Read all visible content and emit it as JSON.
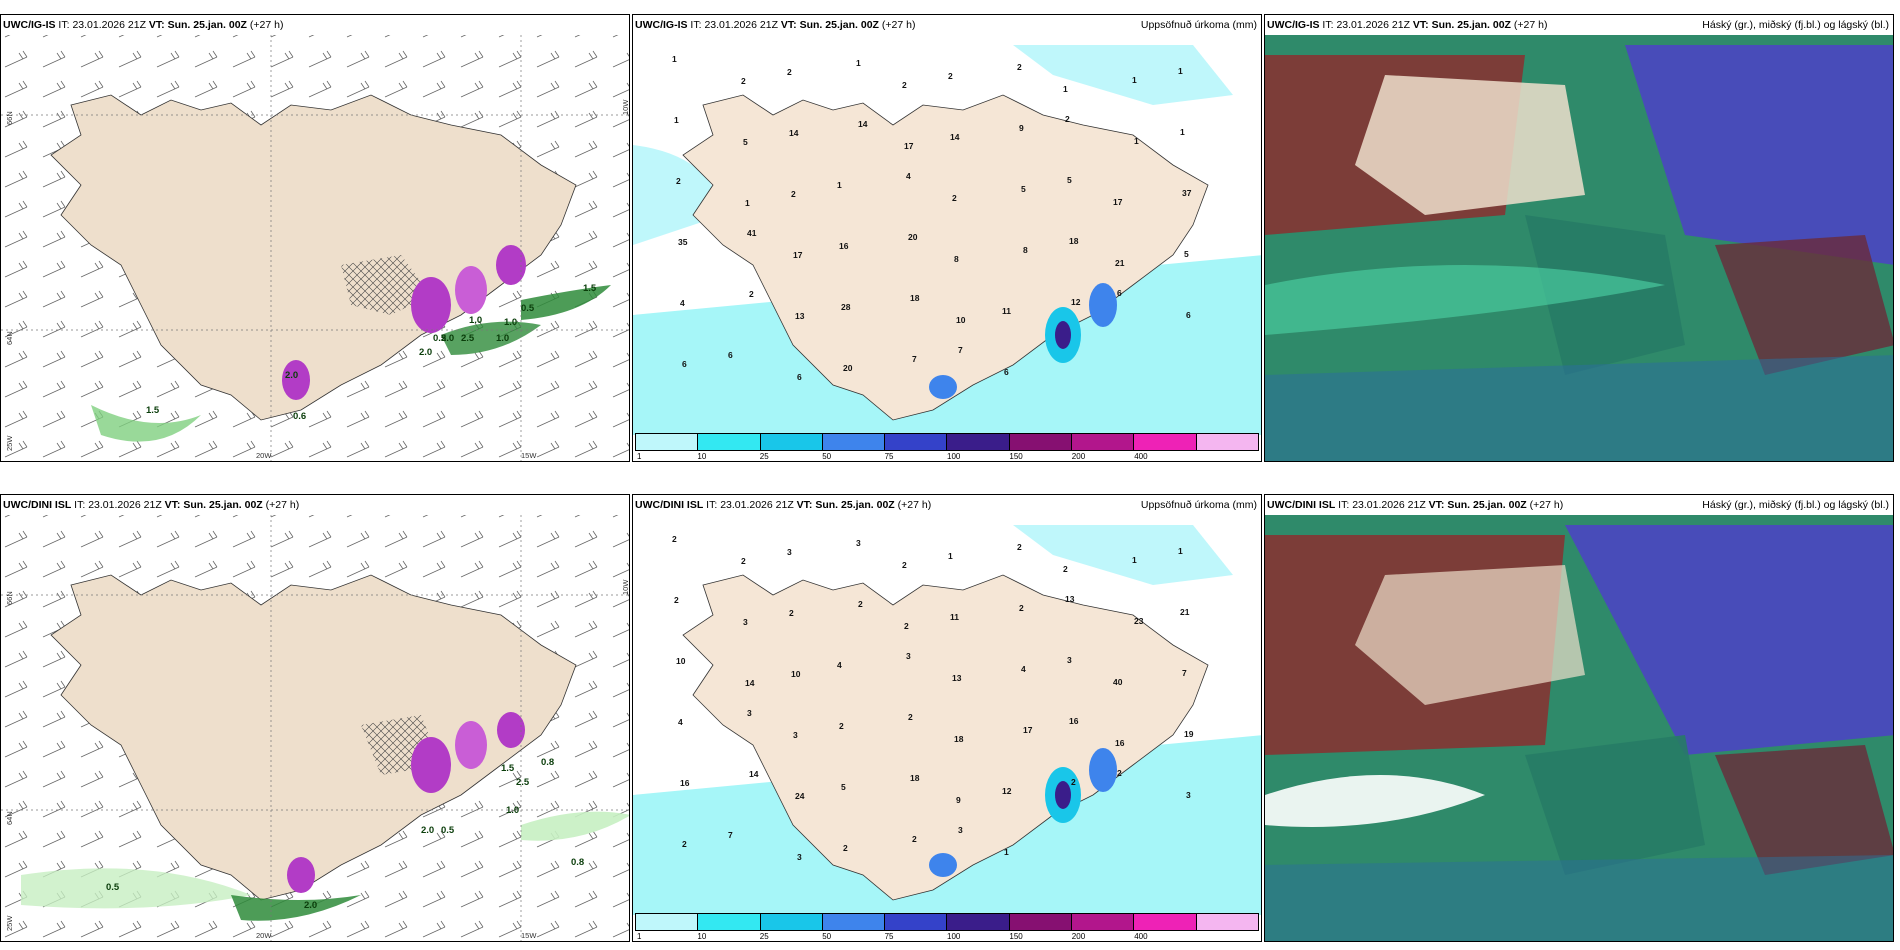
{
  "colors": {
    "land": "#eedfcc",
    "land_fill_rh": "#f5e6d6",
    "sea_precip": "#a6f6f8",
    "green": "#2e8b3a",
    "purple": "#b23cc6"
  },
  "rows": [
    {
      "model": "UWC/IG-IS",
      "it_label": "IT:",
      "it_value": "23.01.2026 21Z",
      "vt_label": "VT:",
      "vt_value": "Sun. 25.jan. 00Z",
      "lead": "(+27 h)"
    },
    {
      "model": "UWC/DINI ISL",
      "it_label": "IT:",
      "it_value": "23.01.2026 21Z",
      "vt_label": "VT:",
      "vt_value": "Sun. 25.jan. 00Z",
      "lead": "(+27 h)"
    }
  ],
  "titles": {
    "precip": "Uppsöfnuð úrkoma (mm)",
    "cloud": "Háský (gr.), miðský (fj.bl.) og lágský (bl.)"
  },
  "axes": {
    "lon_20": "20W",
    "lon_15": "15W",
    "lat_66": "66N",
    "lat_64": "64N",
    "lon_25": "25W",
    "lon_10": "10W"
  },
  "colorbar": {
    "colors": [
      "#bff7fb",
      "#33e8f2",
      "#19c6e9",
      "#3e84ec",
      "#3442c9",
      "#3a1d8a",
      "#861071",
      "#b2168c",
      "#ee22b6",
      "#f4b6f0"
    ],
    "labels": [
      "1",
      "10",
      "25",
      "50",
      "75",
      "100",
      "150",
      "200",
      "400"
    ]
  },
  "precip_top_labels": [
    "1",
    "2",
    "2",
    "1",
    "2",
    "2",
    "2",
    "1",
    "1",
    "1",
    "1",
    "5",
    "14",
    "14",
    "17",
    "14",
    "9",
    "2",
    "1",
    "1",
    "2",
    "1",
    "2",
    "1",
    "4",
    "2",
    "5",
    "5",
    "17",
    "37",
    "35",
    "41",
    "17",
    "16",
    "20",
    "8",
    "8",
    "18",
    "21",
    "5",
    "4",
    "2",
    "13",
    "28",
    "18",
    "10",
    "11",
    "12",
    "6",
    "6",
    "6",
    "6",
    "6",
    "20",
    "7",
    "7",
    "6"
  ],
  "precip_bottom_labels": [
    "2",
    "2",
    "3",
    "3",
    "2",
    "1",
    "2",
    "2",
    "1",
    "1",
    "2",
    "3",
    "2",
    "2",
    "2",
    "11",
    "2",
    "13",
    "23",
    "21",
    "10",
    "14",
    "10",
    "4",
    "3",
    "13",
    "4",
    "3",
    "40",
    "7",
    "4",
    "3",
    "3",
    "2",
    "2",
    "18",
    "17",
    "16",
    "16",
    "19",
    "16",
    "14",
    "24",
    "5",
    "18",
    "9",
    "12",
    "2",
    "2",
    "3",
    "2",
    "7",
    "3",
    "2",
    "2",
    "3",
    "1"
  ],
  "wind_top_labels": [
    "0.5",
    "0.5",
    "1.0",
    "2.5",
    "2.0",
    "2.0",
    "1.0",
    "1.0",
    "1.5",
    "0.6",
    "1.5",
    "2.0"
  ],
  "wind_bottom_labels": [
    "0.8",
    "1.0",
    "1.5",
    "2.0",
    "0.5",
    "2.0",
    "0.5",
    "0.8",
    "2.5"
  ]
}
